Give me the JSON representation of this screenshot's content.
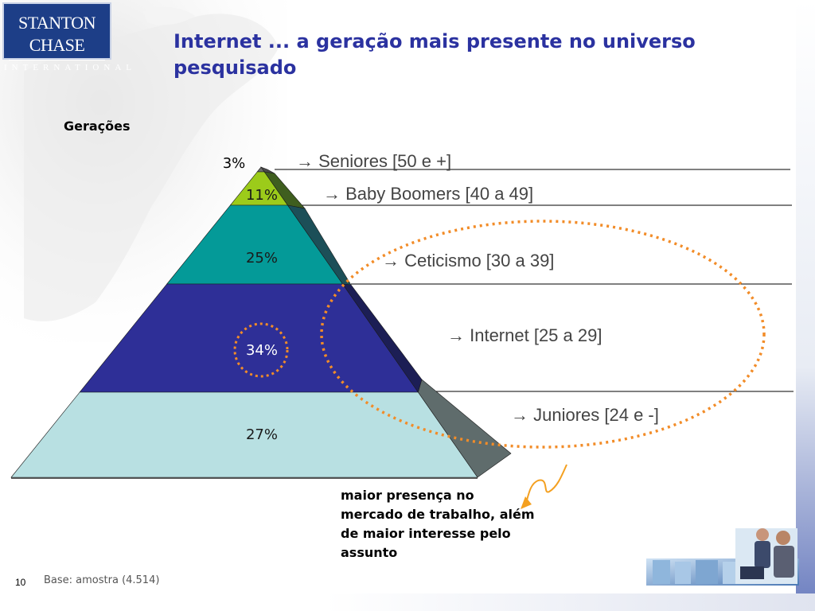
{
  "logo": {
    "name": "STANTON CHASE",
    "sub": "INTERNATIONAL"
  },
  "title": "Internet ... a geração mais presente no universo pesquisado",
  "section_label": "Gerações",
  "chart_data": {
    "type": "pyramid",
    "title": "Internet ... a geração mais presente no universo pesquisado",
    "unit": "%",
    "segments": [
      {
        "label": "Seniores  [50 e +]",
        "value": 3,
        "value_label": "3%",
        "color": "#6b6b6b",
        "side_color": "#4a4a4a"
      },
      {
        "label": "Baby Boomers [40 a 49]",
        "value": 11,
        "value_label": "11%",
        "color": "#9ccb1a",
        "side_color": "#3f5e1f"
      },
      {
        "label": "Ceticismo [30 a 39]",
        "value": 25,
        "value_label": "25%",
        "color": "#049a98",
        "side_color": "#1c4f58"
      },
      {
        "label": "Internet [25 a 29]",
        "value": 34,
        "value_label": "34%",
        "color": "#2e2f97",
        "side_color": "#1c1e55"
      },
      {
        "label": "Juniores [24 e -]",
        "value": 27,
        "value_label": "27%",
        "color": "#b8e0e2",
        "side_color": "#5f6c6c"
      }
    ],
    "highlight": [
      "Ceticismo [30 a 39]",
      "Internet [25 a 29]",
      "Juniores [24 e -]"
    ],
    "highlight_color": "#f28c28",
    "arrow_glyph": "→"
  },
  "callout": "maior presença no mercado de trabalho, além de maior interesse pelo assunto",
  "footer": {
    "page_number": "10",
    "base_note": "Base: amostra (4.514)"
  },
  "colors": {
    "title": "#2b32a0",
    "accent": "#f28c28",
    "logo": "#1d3e87"
  }
}
